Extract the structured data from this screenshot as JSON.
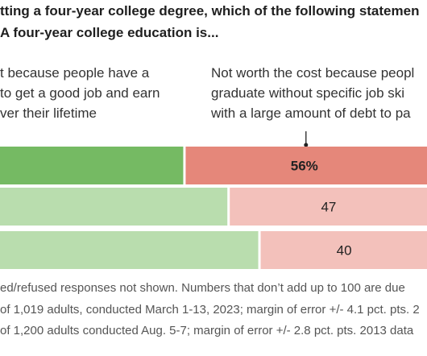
{
  "question": {
    "line1": "tting a four-year college degree, which of the following statemen",
    "line2": "A four-year college education is..."
  },
  "responses": {
    "left_lines": [
      "t because people have a",
      " to get a good job and earn",
      "ver their lifetime"
    ],
    "right_lines": [
      "Not worth the cost because peopl",
      "graduate without specific job ski",
      "with a large amount of debt to pa"
    ]
  },
  "chart_data": {
    "type": "bar",
    "stacked": true,
    "orientation": "horizontal",
    "series": [
      {
        "name": "",
        "values": [
          42,
          52,
          59
        ],
        "colors": [
          "#75ba63",
          "#b9ddae",
          "#b9ddae"
        ]
      },
      {
        "name": "",
        "values": [
          56,
          47,
          40
        ],
        "colors": [
          "#e5877a",
          "#f3c1bb",
          "#f3c1bb"
        ],
        "labels": [
          "56%",
          "47",
          "40"
        ]
      }
    ],
    "highlight_row": 0
  },
  "notes": [
    "ed/refused responses not shown. Numbers that don’t add up to 100 are due",
    "of 1,019 adults, conducted March 1-13, 2023; margin of error +/- 4.1 pct. pts. 2",
    "of 1,200 adults conducted Aug. 5-7; margin of error +/- 2.8 pct. pts. 2013 data"
  ]
}
